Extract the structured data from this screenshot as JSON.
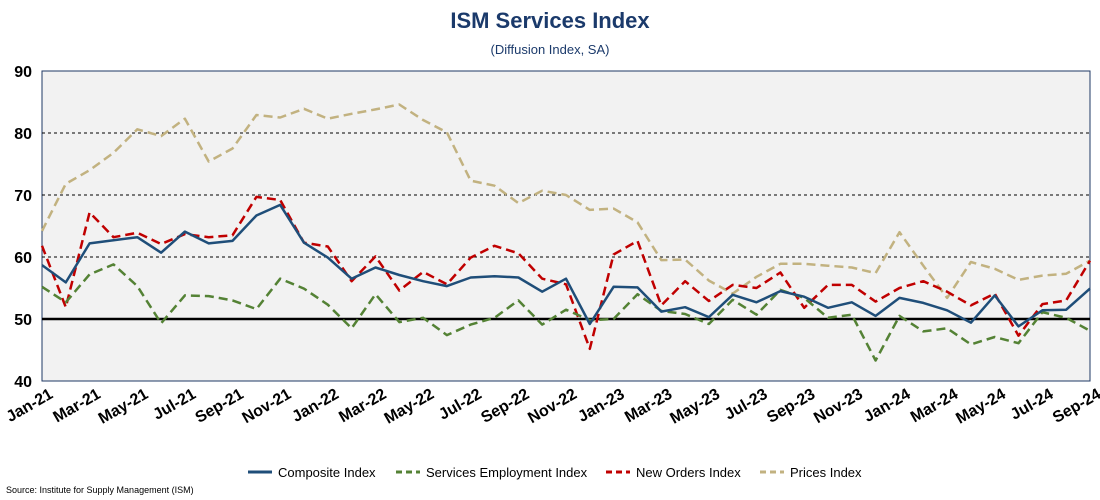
{
  "chart_data": {
    "type": "line",
    "title": "ISM Services Index",
    "subtitle": "(Diffusion Index, SA)",
    "source": "Source: Institute for Supply Management (ISM)",
    "xlabel": "",
    "ylabel": "",
    "ylim": [
      40,
      90
    ],
    "yticks": [
      40,
      50,
      60,
      70,
      80,
      90
    ],
    "grid": "horizontal dashed",
    "reference_line": 50,
    "legend_position": "bottom",
    "x": [
      "Jan-21",
      "Feb-21",
      "Mar-21",
      "Apr-21",
      "May-21",
      "Jun-21",
      "Jul-21",
      "Aug-21",
      "Sep-21",
      "Oct-21",
      "Nov-21",
      "Dec-21",
      "Jan-22",
      "Feb-22",
      "Mar-22",
      "Apr-22",
      "May-22",
      "Jun-22",
      "Jul-22",
      "Aug-22",
      "Sep-22",
      "Oct-22",
      "Nov-22",
      "Dec-22",
      "Jan-23",
      "Feb-23",
      "Mar-23",
      "Apr-23",
      "May-23",
      "Jun-23",
      "Jul-23",
      "Aug-23",
      "Sep-23",
      "Oct-23",
      "Nov-23",
      "Dec-23",
      "Jan-24",
      "Feb-24",
      "Mar-24",
      "Apr-24",
      "May-24",
      "Jun-24",
      "Jul-24",
      "Aug-24",
      "Sep-24"
    ],
    "x_tick_labels": [
      "Jan-21",
      "Mar-21",
      "May-21",
      "Jul-21",
      "Sep-21",
      "Nov-21",
      "Jan-22",
      "Mar-22",
      "May-22",
      "Jul-22",
      "Sep-22",
      "Nov-22",
      "Jan-23",
      "Mar-23",
      "May-23",
      "Jul-23",
      "Sep-23",
      "Nov-23",
      "Jan-24",
      "Mar-24",
      "May-24",
      "Jul-24",
      "Sep-24"
    ],
    "series": [
      {
        "name": "Composite Index",
        "color": "#1f4e79",
        "style": "solid",
        "values": [
          58.7,
          55.9,
          62.2,
          62.7,
          63.2,
          60.7,
          64.1,
          62.2,
          62.6,
          66.7,
          68.4,
          62.3,
          59.9,
          56.5,
          58.3,
          57.1,
          56.1,
          55.3,
          56.7,
          56.9,
          56.7,
          54.4,
          56.5,
          49.2,
          55.2,
          55.1,
          51.2,
          51.9,
          50.3,
          53.9,
          52.7,
          54.5,
          53.6,
          51.8,
          52.7,
          50.5,
          53.4,
          52.6,
          51.4,
          49.4,
          53.8,
          48.8,
          51.4,
          51.5,
          54.9
        ]
      },
      {
        "name": "Services Employment Index",
        "color": "#548235",
        "style": "dashed",
        "values": [
          55.2,
          52.7,
          57.2,
          58.8,
          55.3,
          49.3,
          53.8,
          53.7,
          53.0,
          51.6,
          56.5,
          54.9,
          52.3,
          48.5,
          54.0,
          49.5,
          50.2,
          47.4,
          49.1,
          50.2,
          53.0,
          49.1,
          51.5,
          49.8,
          50.0,
          54.0,
          51.3,
          50.8,
          49.2,
          53.1,
          50.7,
          54.7,
          53.4,
          50.2,
          50.7,
          43.3,
          50.5,
          48.0,
          48.5,
          45.9,
          47.1,
          46.1,
          51.1,
          50.2,
          48.1
        ]
      },
      {
        "name": "New Orders Index",
        "color": "#c00000",
        "style": "dashed",
        "values": [
          61.8,
          51.9,
          67.2,
          63.2,
          63.9,
          62.1,
          63.7,
          63.2,
          63.5,
          69.7,
          69.2,
          62.3,
          61.7,
          56.1,
          60.1,
          54.6,
          57.6,
          55.6,
          59.9,
          61.8,
          60.6,
          56.5,
          55.6,
          45.2,
          60.4,
          62.6,
          52.2,
          56.1,
          52.9,
          55.5,
          55.0,
          57.5,
          51.8,
          55.5,
          55.5,
          52.8,
          55.0,
          56.1,
          54.4,
          52.2,
          54.1,
          47.3,
          52.4,
          53.0,
          59.4
        ]
      },
      {
        "name": "Prices Index",
        "color": "#c2b280",
        "style": "dashed",
        "values": [
          64.2,
          71.8,
          74.0,
          76.8,
          80.6,
          79.5,
          82.3,
          75.4,
          77.5,
          82.9,
          82.5,
          83.9,
          82.3,
          83.1,
          83.8,
          84.6,
          82.1,
          80.1,
          72.3,
          71.5,
          68.7,
          70.7,
          70.0,
          67.6,
          67.8,
          65.6,
          59.5,
          59.6,
          56.2,
          54.1,
          56.8,
          58.9,
          58.9,
          58.6,
          58.3,
          57.4,
          64.0,
          58.6,
          53.4,
          59.2,
          58.1,
          56.3,
          57.0,
          57.3,
          59.4
        ]
      }
    ]
  }
}
